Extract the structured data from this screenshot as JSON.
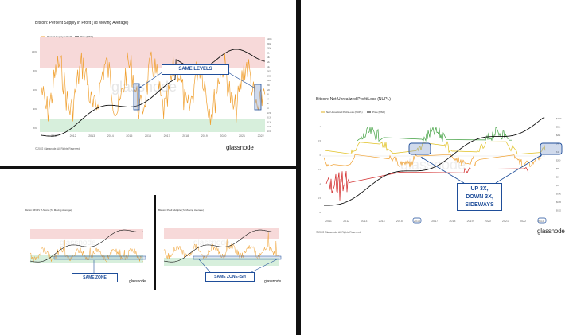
{
  "chart_data": [
    {
      "type": "line",
      "title": "Bitcoin: Percent Supply in Profit (7d Moving Average)",
      "series": [
        {
          "name": "Percent Supply in Profit"
        },
        {
          "name": "Price [USD]"
        }
      ],
      "x_ticks": [
        "2011",
        "2012",
        "2013",
        "2014",
        "2015",
        "2016",
        "2017",
        "2018",
        "2019",
        "2020",
        "2021",
        "2022"
      ],
      "y_left_ticks": [
        "100%",
        "80%",
        "60%",
        "40%",
        "20%"
      ],
      "y_right_ticks": [
        "$100k",
        "$50k",
        "$20k",
        "$8k",
        "$4k",
        "$2k",
        "$1k",
        "$500",
        "$200",
        "$100",
        "$50",
        "$20",
        "$8",
        "$4",
        "$2",
        "$1",
        "$0.50",
        "$0.20",
        "$0.10",
        "$0.05",
        "$0.02"
      ],
      "annotation": "SAME LEVELS",
      "copyright": "© 2022 Glassnode. All Rights Reserved.",
      "brand": "glassnode"
    },
    {
      "type": "line",
      "title": "Bitcoin: Net Unrealized Profit/Loss (NUPL)",
      "series": [
        {
          "name": "Net Unrealized Profit/Loss (NUPL)"
        },
        {
          "name": "Price [USD]"
        }
      ],
      "x_ticks": [
        "2011",
        "2012",
        "2013",
        "2014",
        "2015",
        "2016",
        "2017",
        "2018",
        "2019",
        "2020",
        "2021",
        "2022",
        "2023"
      ],
      "y_left_ticks": [
        "1",
        "0.5",
        "0",
        "-0.5",
        "-1",
        "-1.5",
        "-2"
      ],
      "y_right_ticks": [
        "$100k",
        "$50k",
        "$20k",
        "$4k",
        "$1k",
        "$200",
        "$50",
        "$8",
        "$1",
        "$0.40",
        "$0.05",
        "$0.02"
      ],
      "annotation": [
        "UP 3X,",
        "DOWN 3X,",
        "SIDEWAYS"
      ],
      "copyright": "© 2022 Glassnode. All Rights Reserved.",
      "brand": "glassnode"
    },
    {
      "type": "line",
      "title": "Bitcoin: MVRV Z-Score (7d Moving Average)",
      "annotation": "SAME ZONE",
      "brand": "glassnode"
    },
    {
      "type": "line",
      "title": "Bitcoin: Puell Multiple (7d Moving Average)",
      "annotation": "SAME ZONE-ISH",
      "brand": "glassnode"
    }
  ]
}
